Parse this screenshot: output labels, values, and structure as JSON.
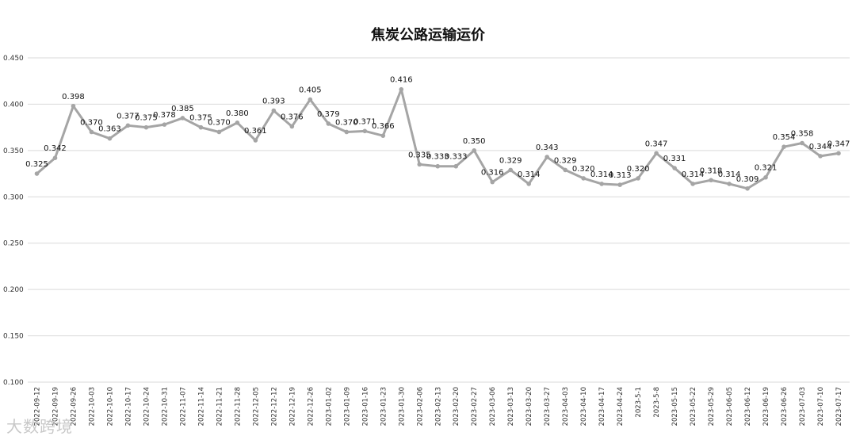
{
  "watermark": "大数跨境",
  "chart_data": {
    "type": "line",
    "title": "焦炭公路运输运价",
    "xlabel": "",
    "ylabel": "",
    "ylim": [
      0.1,
      0.45
    ],
    "yticks": [
      "0.100",
      "0.150",
      "0.200",
      "0.250",
      "0.300",
      "0.350",
      "0.400",
      "0.450"
    ],
    "grid": true,
    "legend": "none",
    "color": "#a5a5a5",
    "categories": [
      "2022-09-12",
      "2022-09-19",
      "2022-09-26",
      "2022-10-03",
      "2022-10-10",
      "2022-10-17",
      "2022-10-24",
      "2022-10-31",
      "2022-11-07",
      "2022-11-14",
      "2022-11-21",
      "2022-11-28",
      "2022-12-05",
      "2022-12-12",
      "2022-12-19",
      "2022-12-26",
      "2023-01-02",
      "2023-01-09",
      "2023-01-16",
      "2023-01-23",
      "2023-01-30",
      "2023-02-06",
      "2023-02-13",
      "2023-02-20",
      "2023-02-27",
      "2023-03-06",
      "2023-03-13",
      "2023-03-20",
      "2023-03-27",
      "2023-04-03",
      "2023-04-10",
      "2023-04-17",
      "2023-04-24",
      "2023-5-1",
      "2023-5-8",
      "2023-05-15",
      "2023-05-22",
      "2023-05-29",
      "2023-06-05",
      "2023-06-12",
      "2023-06-19",
      "2023-06-26",
      "2023-07-03",
      "2023-07-10",
      "2023-07-17"
    ],
    "values": [
      0.325,
      0.342,
      0.398,
      0.37,
      0.363,
      0.377,
      0.375,
      0.378,
      0.385,
      0.375,
      0.37,
      0.38,
      0.361,
      0.393,
      0.376,
      0.405,
      0.379,
      0.37,
      0.371,
      0.366,
      0.416,
      0.335,
      0.333,
      0.333,
      0.35,
      0.316,
      0.329,
      0.314,
      0.343,
      0.329,
      0.32,
      0.314,
      0.313,
      0.32,
      0.347,
      0.331,
      0.314,
      0.318,
      0.314,
      0.309,
      0.321,
      0.354,
      0.358,
      0.344,
      0.347
    ],
    "data_labels": [
      "0.325",
      "0.342",
      "0.398",
      "0.370",
      "0.363",
      "0.377",
      "0.375",
      "0.378",
      "0.385",
      "0.375",
      "0.370",
      "0.380",
      "0.361",
      "0.393",
      "0.376",
      "0.405",
      "0.379",
      "0.370",
      "0.371",
      "0.366",
      "0.416",
      "0.335",
      "0.333",
      "0.333",
      "0.350",
      "0.316",
      "0.329",
      "0.314",
      "0.343",
      "0.329",
      "0.320",
      "0.314",
      "0.313",
      "0.320",
      "0.347",
      "0.331",
      "0.314",
      "0.318",
      "0.314",
      "0.309",
      "0.321",
      "0.354",
      "0.358",
      "0.344",
      "0.347"
    ]
  }
}
